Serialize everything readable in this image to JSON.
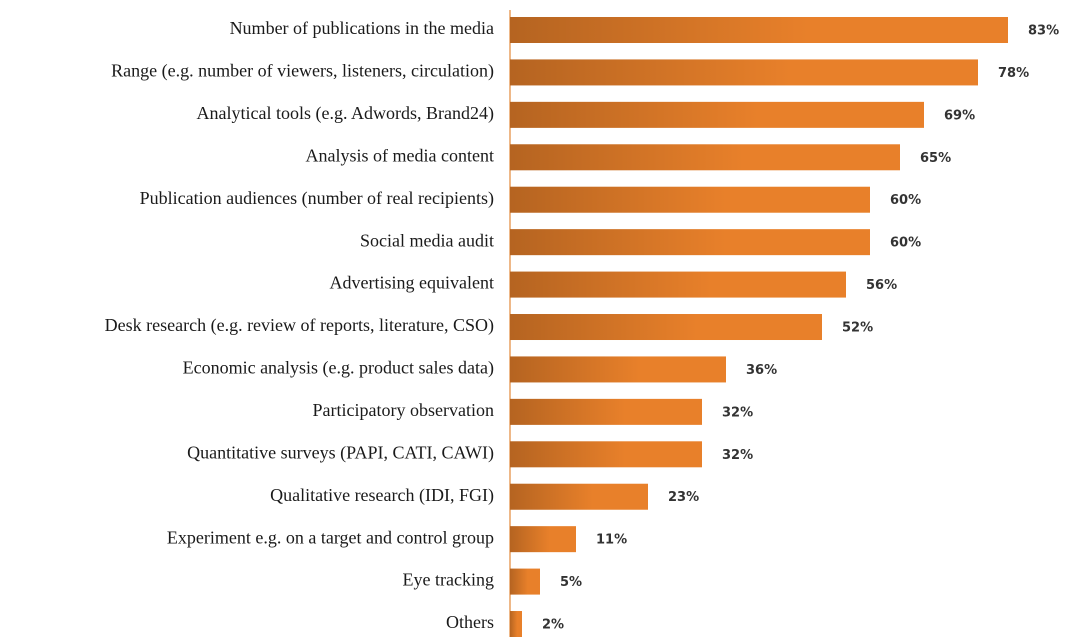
{
  "chart_data": {
    "type": "bar",
    "orientation": "horizontal",
    "categories": [
      "Number of publications in the media",
      "Range (e.g. number of viewers, listeners, circulation)",
      "Analytical tools (e.g. Adwords, Brand24)",
      "Analysis of media content",
      "Publication audiences (number of real recipients)",
      "Social media audit",
      "Advertising equivalent",
      "Desk research (e.g. review of reports, literature, CSO)",
      "Economic analysis (e.g. product sales data)",
      "Participatory observation",
      "Quantitative surveys (PAPI, CATI, CAWI)",
      "Qualitative research (IDI, FGI)",
      "Experiment e.g. on a target and control group",
      "Eye tracking",
      "Others"
    ],
    "values": [
      83,
      78,
      69,
      65,
      60,
      60,
      56,
      52,
      36,
      32,
      32,
      23,
      11,
      5,
      2
    ],
    "value_labels": [
      "83%",
      "78%",
      "69%",
      "65%",
      "60%",
      "60%",
      "56%",
      "52%",
      "36%",
      "32%",
      "32%",
      "23%",
      "11%",
      "5%",
      "2%"
    ],
    "color": "#e8802a",
    "xlim": [
      0,
      90
    ]
  }
}
